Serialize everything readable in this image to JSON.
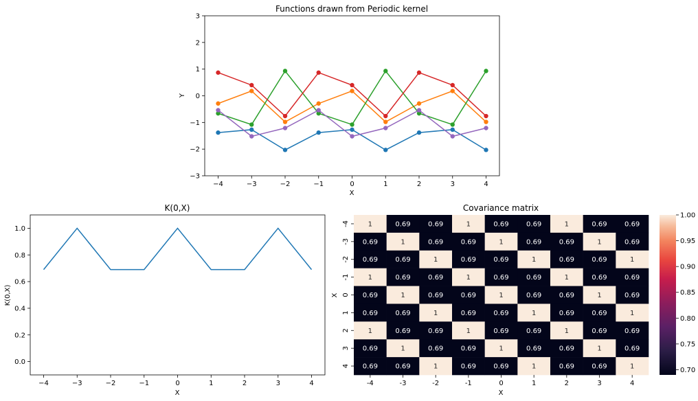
{
  "colors": {
    "series": [
      "#1f77b4",
      "#ff7f0e",
      "#2ca02c",
      "#d62728",
      "#9467bd"
    ],
    "heatmap_low": "#03051a",
    "heatmap_high": "#faebdd"
  },
  "chart_data": [
    {
      "id": "functions",
      "type": "line",
      "title": "Functions drawn from Periodic kernel",
      "xlabel": "X",
      "ylabel": "Y",
      "x": [
        -4,
        -3,
        -2,
        -1,
        0,
        1,
        2,
        3,
        4
      ],
      "xlim": [
        -4.4,
        4.4
      ],
      "ylim": [
        -3,
        3
      ],
      "xticks": [
        "−4",
        "−3",
        "−2",
        "−1",
        "0",
        "1",
        "2",
        "3",
        "4"
      ],
      "yticks": [
        "−3",
        "−2",
        "−1",
        "0",
        "1",
        "2",
        "3"
      ],
      "markers": true,
      "grid": false,
      "series": [
        {
          "values": [
            -1.38,
            -1.27,
            -2.03,
            -1.38,
            -1.27,
            -2.03,
            -1.38,
            -1.27,
            -2.03
          ]
        },
        {
          "values": [
            -0.29,
            0.18,
            -0.98,
            -0.29,
            0.18,
            -0.98,
            -0.29,
            0.18,
            -0.98
          ]
        },
        {
          "values": [
            -0.66,
            -1.08,
            0.93,
            -0.66,
            -1.08,
            0.93,
            -0.66,
            -1.08,
            0.93
          ]
        },
        {
          "values": [
            0.87,
            0.4,
            -0.76,
            0.87,
            0.4,
            -0.76,
            0.87,
            0.4,
            -0.76
          ]
        },
        {
          "values": [
            -0.54,
            -1.52,
            -1.21,
            -0.54,
            -1.52,
            -1.21,
            -0.54,
            -1.52,
            -1.21
          ]
        }
      ]
    },
    {
      "id": "kernel",
      "type": "line",
      "title": "K(0,X)",
      "xlabel": "X",
      "ylabel": "K(0,X)",
      "x": [
        -4,
        -3,
        -2,
        -1,
        0,
        1,
        2,
        3,
        4
      ],
      "xlim": [
        -4.4,
        4.4
      ],
      "ylim": [
        -0.1,
        1.1
      ],
      "xticks": [
        "−4",
        "−3",
        "−2",
        "−1",
        "0",
        "1",
        "2",
        "3",
        "4"
      ],
      "yticks": [
        "0.0",
        "0.2",
        "0.4",
        "0.6",
        "0.8",
        "1.0"
      ],
      "grid": false,
      "series": [
        {
          "values": [
            0.69,
            1.0,
            0.69,
            0.69,
            1.0,
            0.69,
            0.69,
            1.0,
            0.69
          ]
        }
      ]
    },
    {
      "id": "covariance",
      "type": "heatmap",
      "title": "Covariance matrix",
      "xlabel": "X",
      "ylabel": "X",
      "xticks": [
        "-4",
        "-3",
        "-2",
        "-1",
        "0",
        "1",
        "2",
        "3",
        "4"
      ],
      "yticks": [
        "-4",
        "-3",
        "-2",
        "-1",
        "0",
        "1",
        "2",
        "3",
        "4"
      ],
      "values": [
        [
          1,
          0.69,
          0.69,
          1,
          0.69,
          0.69,
          1,
          0.69,
          0.69
        ],
        [
          0.69,
          1,
          0.69,
          0.69,
          1,
          0.69,
          0.69,
          1,
          0.69
        ],
        [
          0.69,
          0.69,
          1,
          0.69,
          0.69,
          1,
          0.69,
          0.69,
          1
        ],
        [
          1,
          0.69,
          0.69,
          1,
          0.69,
          0.69,
          1,
          0.69,
          0.69
        ],
        [
          0.69,
          1,
          0.69,
          0.69,
          1,
          0.69,
          0.69,
          1,
          0.69
        ],
        [
          0.69,
          0.69,
          1,
          0.69,
          0.69,
          1,
          0.69,
          0.69,
          1
        ],
        [
          1,
          0.69,
          0.69,
          1,
          0.69,
          0.69,
          1,
          0.69,
          0.69
        ],
        [
          0.69,
          1,
          0.69,
          0.69,
          1,
          0.69,
          0.69,
          1,
          0.69
        ],
        [
          0.69,
          0.69,
          1,
          0.69,
          0.69,
          1,
          0.69,
          0.69,
          1
        ]
      ],
      "cell_labels": [
        [
          "1",
          "0.69",
          "0.69",
          "1",
          "0.69",
          "0.69",
          "1",
          "0.69",
          "0.69"
        ],
        [
          "0.69",
          "1",
          "0.69",
          "0.69",
          "1",
          "0.69",
          "0.69",
          "1",
          "0.69"
        ],
        [
          "0.69",
          "0.69",
          "1",
          "0.69",
          "0.69",
          "1",
          "0.69",
          "0.69",
          "1"
        ],
        [
          "1",
          "0.69",
          "0.69",
          "1",
          "0.69",
          "0.69",
          "1",
          "0.69",
          "0.69"
        ],
        [
          "0.69",
          "1",
          "0.69",
          "0.69",
          "1",
          "0.69",
          "0.69",
          "1",
          "0.69"
        ],
        [
          "0.69",
          "0.69",
          "1",
          "0.69",
          "0.69",
          "1",
          "0.69",
          "0.69",
          "1"
        ],
        [
          "1",
          "0.69",
          "0.69",
          "1",
          "0.69",
          "0.69",
          "1",
          "0.69",
          "0.69"
        ],
        [
          "0.69",
          "1",
          "0.69",
          "0.69",
          "1",
          "0.69",
          "0.69",
          "1",
          "0.69"
        ],
        [
          "0.69",
          "0.69",
          "1",
          "0.69",
          "0.69",
          "1",
          "0.69",
          "0.69",
          "1"
        ]
      ],
      "colorbar": {
        "range": [
          0.69,
          1.0
        ],
        "ticks": [
          0.7,
          0.75,
          0.8,
          0.85,
          0.9,
          0.95,
          1.0
        ],
        "tick_labels": [
          "0.70",
          "0.75",
          "0.80",
          "0.85",
          "0.90",
          "0.95",
          "1.00"
        ]
      }
    }
  ]
}
